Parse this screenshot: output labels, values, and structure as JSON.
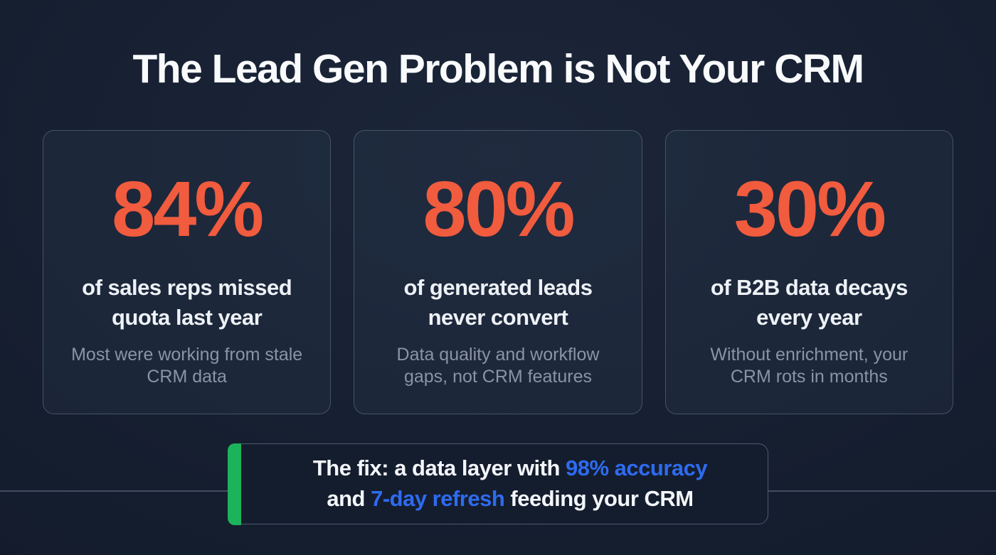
{
  "title": "The Lead Gen Problem is Not Your CRM",
  "cards": [
    {
      "percent": "84%",
      "heading": "of sales reps missed quota last year",
      "subtext": "Most were working from stale CRM data"
    },
    {
      "percent": "80%",
      "heading": "of generated leads never convert",
      "subtext": "Data quality and workflow gaps, not CRM features"
    },
    {
      "percent": "30%",
      "heading": "of B2B data decays every year",
      "subtext": "Without enrichment, your CRM rots in months"
    }
  ],
  "callout": {
    "line1_normal": "The fix: a data layer with ",
    "line1_highlight": "98% accuracy",
    "line2_prefix": "and ",
    "line2_highlight": "7-day refresh",
    "line2_suffix": " feeding your CRM"
  },
  "colors": {
    "accent_orange": "#F15B3E",
    "accent_blue": "#2E6BF0",
    "accent_green": "#1DB35B"
  }
}
